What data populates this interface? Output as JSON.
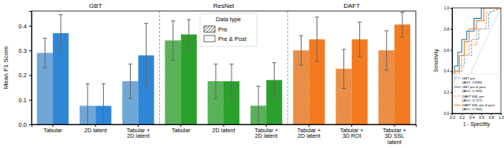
{
  "chart_data": [
    {
      "type": "bar",
      "ylabel": "Mean F1 Score",
      "panels": [
        {
          "title": "GBT",
          "count": 3
        },
        {
          "title": "ResNet",
          "count": 3
        },
        {
          "title": "DAFT",
          "count": 3
        }
      ],
      "categories": [
        "Tabular",
        "2D latent",
        "Tabular +\n2D latent",
        "Tabular",
        "2D latent",
        "Tabular +\n2D latent",
        "Tabular +\n2D latent",
        "Tabular +\n3D ROI",
        "Tabular +\n3D SSL\nlatent"
      ],
      "legend": "upper center",
      "legend_title": "Data type",
      "series": [
        {
          "name": "Pre",
          "colors": [
            "#74aee0",
            "#74aee0",
            "#74aee0",
            "#5cba5c",
            "#5cba5c",
            "#5cba5c",
            "#f5944a",
            "#f5944a",
            "#f5944a"
          ],
          "values": [
            0.29,
            0.075,
            0.175,
            0.34,
            0.175,
            0.075,
            0.3,
            0.225,
            0.3
          ],
          "errors": [
            0.06,
            0.09,
            0.07,
            0.08,
            0.07,
            0.08,
            0.06,
            0.08,
            0.08
          ]
        },
        {
          "name": "Pre & Post",
          "colors": [
            "#2f86d6",
            "#2f86d6",
            "#2f86d6",
            "#2ca02c",
            "#2ca02c",
            "#2ca02c",
            "#f47a20",
            "#f47a20",
            "#f47a20"
          ],
          "values": [
            0.37,
            0.075,
            0.28,
            0.365,
            0.175,
            0.18,
            0.345,
            0.345,
            0.405
          ],
          "errors": [
            0.075,
            0.09,
            0.13,
            0.06,
            0.07,
            0.07,
            0.09,
            0.07,
            0.05
          ]
        }
      ],
      "ylim": [
        0,
        0.46
      ],
      "yticks": [
        {
          "value": 0,
          "label": "0.0"
        },
        0.1,
        0.2,
        0.3,
        0.4
      ]
    },
    {
      "type": "line",
      "xlabel": "1 - Specifity",
      "ylabel": "Sensitivity",
      "xlim": [
        0,
        1
      ],
      "ylim": [
        0,
        1
      ],
      "xticks": [
        {
          "value": 0,
          "label": "0.0"
        },
        0.2,
        0.4,
        0.6,
        0.8,
        {
          "value": 1,
          "label": "1.0"
        }
      ],
      "yticks": [
        {
          "value": 0,
          "label": "0.0"
        },
        0.2,
        0.4,
        0.6,
        0.8,
        {
          "value": 1,
          "label": "1.0"
        }
      ],
      "legend": "lower right",
      "series": [
        {
          "color": "#999999",
          "line_style": "dotted",
          "x": [
            0,
            1
          ],
          "values": [
            0,
            1
          ]
        },
        {
          "name": "GBT pre\n(AUC: 0.694)",
          "color": "#6aaae0",
          "line_style": "dashed",
          "x": [
            0,
            0.02,
            0.02,
            0.08,
            0.08,
            0.15,
            0.15,
            0.25,
            0.25,
            0.4,
            0.4,
            0.55,
            0.55,
            0.75,
            0.75,
            1
          ],
          "values": [
            0,
            0,
            0.2,
            0.2,
            0.35,
            0.35,
            0.45,
            0.45,
            0.55,
            0.55,
            0.7,
            0.7,
            0.8,
            0.8,
            0.95,
            1
          ]
        },
        {
          "name": "GBT pre & post\n(AUC: 0.769)",
          "color": "#1f77b4",
          "line_style": "solid",
          "x": [
            0,
            0,
            0.05,
            0.05,
            0.12,
            0.12,
            0.2,
            0.2,
            0.3,
            0.3,
            0.45,
            0.45,
            0.6,
            0.6,
            1
          ],
          "values": [
            0,
            0.3,
            0.3,
            0.45,
            0.45,
            0.58,
            0.58,
            0.7,
            0.7,
            0.78,
            0.78,
            0.9,
            0.9,
            1,
            1
          ]
        },
        {
          "name": "DAFT SSL pre\n(AUC: 0.717)",
          "color": "#f5a05a",
          "line_style": "dashed",
          "x": [
            0,
            0.03,
            0.03,
            0.1,
            0.1,
            0.2,
            0.2,
            0.35,
            0.35,
            0.5,
            0.5,
            0.7,
            0.7,
            1
          ],
          "values": [
            0,
            0,
            0.25,
            0.25,
            0.4,
            0.4,
            0.55,
            0.55,
            0.65,
            0.65,
            0.8,
            0.8,
            0.95,
            1
          ]
        },
        {
          "name": "DAFT SSL pre & post\n(AUC: 0.764)",
          "color": "#f47a20",
          "line_style": "solid",
          "x": [
            0,
            0,
            0.06,
            0.06,
            0.15,
            0.15,
            0.25,
            0.25,
            0.35,
            0.35,
            0.5,
            0.5,
            0.65,
            0.65,
            1
          ],
          "values": [
            0,
            0.2,
            0.2,
            0.4,
            0.4,
            0.55,
            0.55,
            0.68,
            0.68,
            0.8,
            0.8,
            0.88,
            0.88,
            1,
            1
          ]
        }
      ]
    }
  ]
}
